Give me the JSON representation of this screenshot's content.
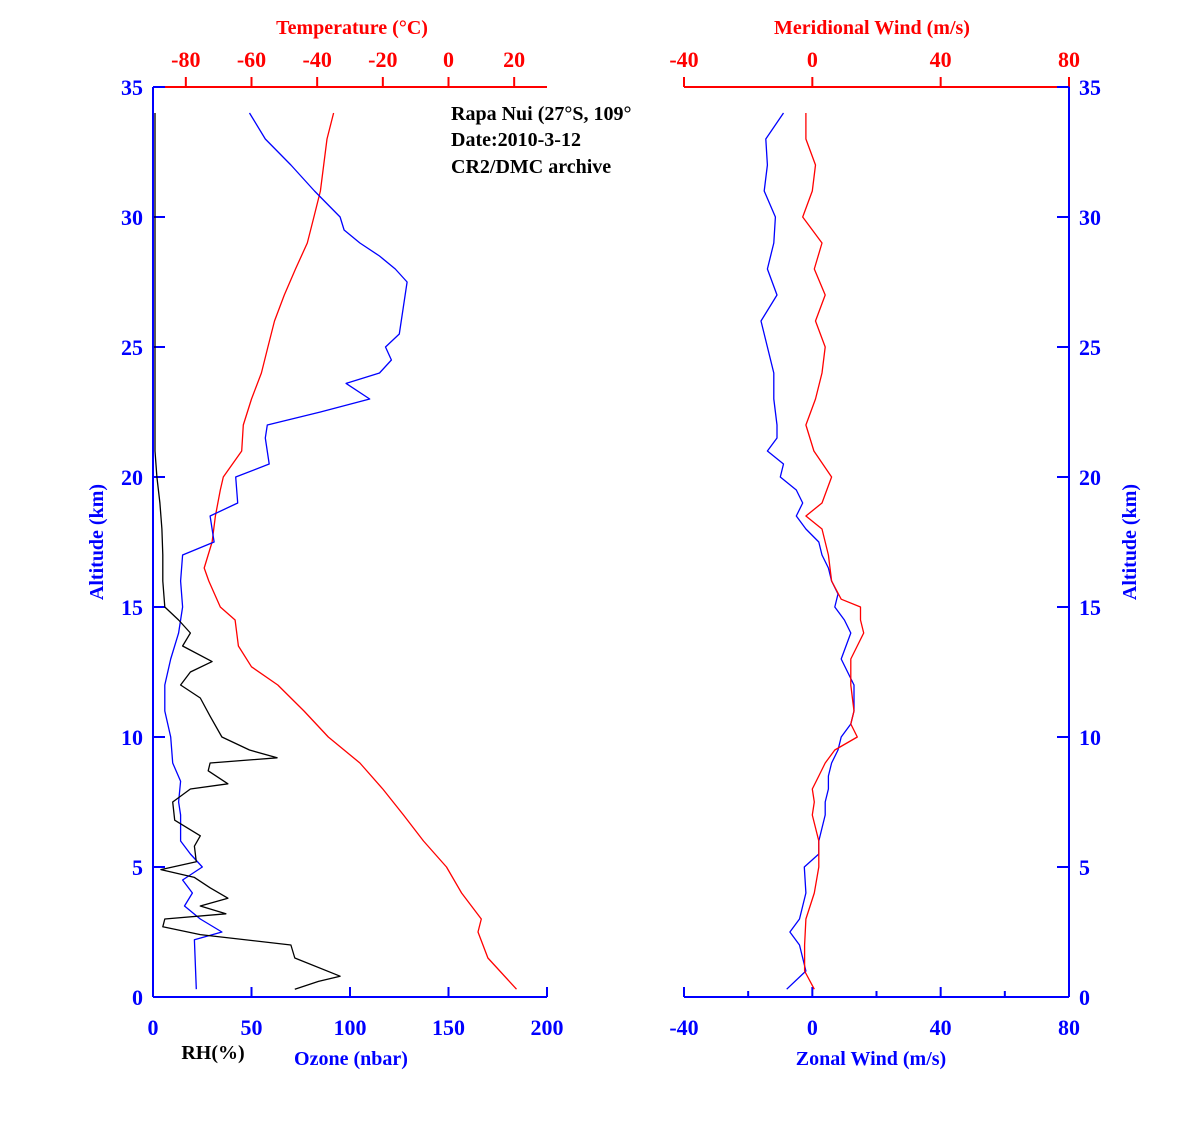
{
  "chart_data": [
    {
      "type": "line",
      "panel": "left",
      "annotation": [
        "Rapa Nui (27°S, 109°",
        "Date:2010-3-12",
        "CR2/DMC archive"
      ],
      "ylabel": "Altitude (km)",
      "ylim": [
        0,
        35
      ],
      "yticks": [
        0,
        5,
        10,
        15,
        20,
        25,
        30,
        35
      ],
      "xlabel_bottom": "Ozone (nbar)",
      "xlabel_bottom2": "RH(%)",
      "xlim_bottom": [
        0,
        200
      ],
      "xticks_bottom": [
        0,
        50,
        100,
        150,
        200
      ],
      "xlabel_top": "Temperature (°C)",
      "xlim_top": [
        -90,
        30
      ],
      "xticks_top": [
        -80,
        -60,
        -40,
        -20,
        0,
        20
      ],
      "series": [
        {
          "name": "Temperature",
          "axis": "top",
          "color": "#ff0000",
          "alt": [
            0.3,
            1.5,
            2.5,
            3,
            4,
            5,
            6,
            7,
            8,
            9,
            10,
            11,
            12,
            12.7,
            13.5,
            14.5,
            15,
            16,
            16.5,
            17.5,
            18.5,
            19.5,
            20,
            21,
            22,
            23,
            24,
            25,
            26,
            27,
            28,
            29,
            30,
            31,
            32,
            33,
            34
          ],
          "values": [
            20.7,
            12,
            9,
            10,
            4,
            -0.6,
            -7.6,
            -13.7,
            -20,
            -27,
            -36.6,
            -44,
            -52,
            -60,
            -64,
            -65,
            -69.5,
            -73,
            -74.4,
            -72,
            -71,
            -69.5,
            -68.6,
            -63,
            -62.5,
            -60,
            -57,
            -55,
            -53,
            -50,
            -46.6,
            -43,
            -41,
            -39,
            -38,
            -37,
            -35
          ]
        },
        {
          "name": "Ozone",
          "axis": "bottom",
          "color": "#0000ff",
          "alt": [
            0.3,
            2.2,
            2.5,
            3,
            3.5,
            4,
            4.5,
            5,
            5.5,
            6,
            7,
            7.5,
            8.3,
            9,
            10,
            11,
            12,
            13,
            14,
            15,
            16,
            17,
            17.5,
            18.5,
            19,
            20,
            20.5,
            21.5,
            22,
            22.5,
            23,
            23.6,
            24,
            24.5,
            25,
            25.5,
            26.5,
            27.5,
            28,
            28.5,
            29,
            29.5,
            30,
            31,
            32,
            33,
            34
          ],
          "values": [
            22,
            21,
            35,
            24,
            16,
            20,
            15,
            25,
            19,
            14,
            14,
            13,
            14,
            10,
            9,
            6,
            6,
            9,
            13,
            15,
            14,
            15,
            31,
            29,
            43,
            42,
            59,
            57,
            58,
            85,
            110,
            98,
            115,
            121,
            118,
            125,
            127,
            129,
            123,
            115,
            105,
            97,
            95,
            82,
            70,
            57,
            49
          ]
        },
        {
          "name": "RH",
          "axis": "bottom",
          "color": "#000000",
          "alt": [
            0.3,
            0.6,
            0.8,
            1.5,
            2,
            2.4,
            2.7,
            3,
            3.2,
            3.5,
            3.8,
            4.2,
            4.6,
            4.9,
            5.2,
            5.8,
            6.2,
            6.8,
            7.5,
            8,
            8.2,
            8.7,
            9,
            9.2,
            9.5,
            10,
            10.8,
            11.5,
            12,
            12.5,
            12.9,
            13.5,
            14,
            14.5,
            15,
            16,
            17,
            18,
            19,
            20,
            21,
            34
          ],
          "values": [
            72,
            84,
            95,
            72,
            70,
            24,
            5,
            6,
            37,
            24,
            38,
            29,
            21,
            4,
            22,
            21,
            24,
            11,
            10,
            19,
            38,
            28,
            29,
            63,
            49,
            35,
            29,
            24,
            14,
            19,
            30,
            15,
            19,
            13,
            6,
            5,
            5,
            4.5,
            3.5,
            2,
            1,
            1
          ]
        }
      ]
    },
    {
      "type": "line",
      "panel": "right",
      "ylabel": "Altitude (km)",
      "ylim": [
        0,
        35
      ],
      "yticks": [
        0,
        5,
        10,
        15,
        20,
        25,
        30,
        35
      ],
      "xlabel_bottom": "Zonal Wind (m/s)",
      "xlim_bottom": [
        -40,
        80
      ],
      "xticks_bottom": [
        -40,
        0,
        40,
        80
      ],
      "xlabel_top": "Meridional Wind (m/s)",
      "xlim_top": [
        -40,
        80
      ],
      "xticks_top": [
        -40,
        0,
        40,
        80
      ],
      "series": [
        {
          "name": "Zonal Wind",
          "axis": "bottom",
          "color": "#0000ff",
          "alt": [
            0.3,
            1,
            1.5,
            2,
            2.5,
            3,
            3.5,
            4,
            5,
            5.5,
            6,
            6.5,
            7,
            7.5,
            8,
            8.5,
            9,
            9.5,
            10,
            10.5,
            11,
            12,
            13,
            14,
            14.5,
            15,
            15.5,
            16,
            16.5,
            17,
            17.5,
            18,
            18.5,
            19,
            19.5,
            20,
            20.5,
            21,
            21.5,
            22,
            23,
            24,
            25,
            26,
            27,
            28,
            29,
            30,
            31,
            32,
            33,
            34
          ],
          "values": [
            -8,
            -2,
            -3,
            -4,
            -7,
            -4,
            -3,
            -2,
            -2.5,
            2,
            2,
            3,
            4,
            4,
            5,
            5,
            6,
            8,
            9,
            12,
            13,
            13,
            9,
            12,
            10,
            7,
            8,
            6,
            5,
            3,
            2,
            -2,
            -5,
            -3,
            -5,
            -10,
            -9,
            -14,
            -11,
            -11,
            -12,
            -12,
            -14,
            -16,
            -11,
            -14,
            -12,
            -11.5,
            -15,
            -14,
            -14.5,
            -9
          ]
        },
        {
          "name": "Meridional Wind",
          "axis": "top",
          "color": "#ff0000",
          "alt": [
            0.3,
            1,
            2,
            3,
            4,
            5,
            6,
            7,
            7.5,
            8,
            8.5,
            9,
            9.5,
            10,
            10.5,
            11,
            12,
            13,
            14,
            14.5,
            15,
            15.3,
            16,
            17,
            17.5,
            18,
            18.5,
            19,
            20,
            21,
            22,
            23,
            24,
            25,
            26,
            27,
            28,
            29,
            30,
            31,
            32,
            33,
            34
          ],
          "values": [
            0.6,
            -2.4,
            -2.4,
            -2,
            0.6,
            2,
            2,
            0,
            0.6,
            0,
            2,
            4,
            7,
            14,
            12,
            13,
            12,
            12,
            16,
            15,
            15,
            9,
            6,
            5,
            4,
            3,
            -2,
            3,
            6,
            0.5,
            -2,
            1,
            3,
            4,
            1,
            4,
            0.6,
            3,
            -3,
            0,
            1,
            -2,
            -2
          ]
        }
      ]
    }
  ]
}
